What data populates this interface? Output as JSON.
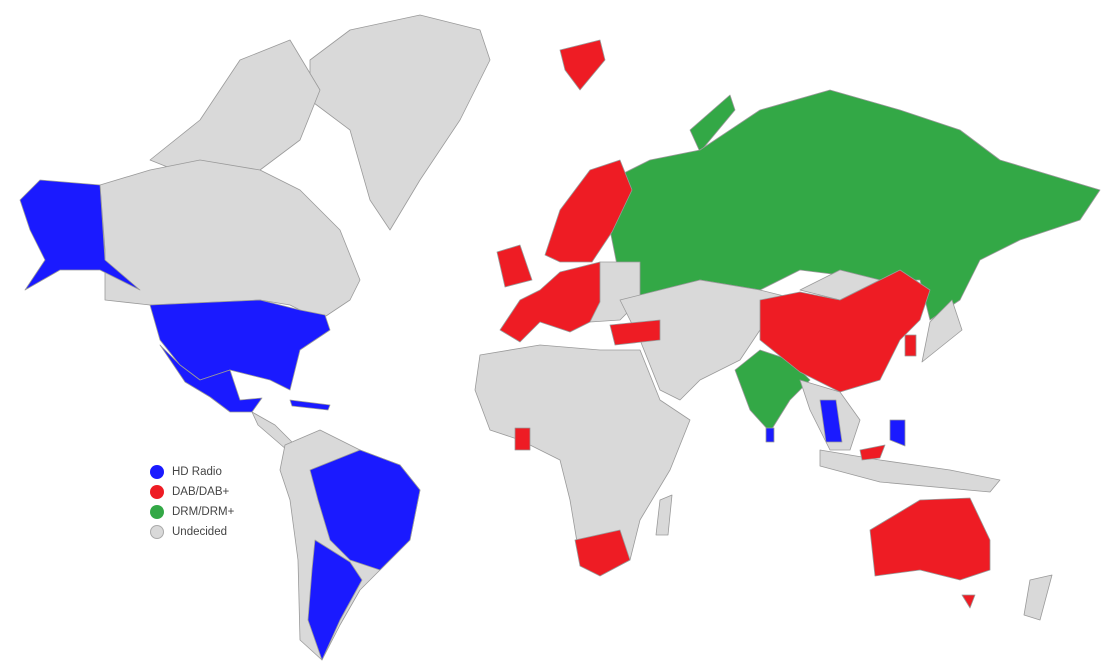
{
  "colors": {
    "hd_radio": "#1a1aff",
    "dab": "#ee1c24",
    "drm": "#33a846",
    "undecided": "#d9d9d9",
    "border": "#9a9a9a"
  },
  "legend": [
    {
      "label": "HD Radio",
      "color": "#1a1aff"
    },
    {
      "label": "DAB/DAB+",
      "color": "#ee1c24"
    },
    {
      "label": "DRM/DRM+",
      "color": "#33a846"
    },
    {
      "label": "Undecided",
      "color": "#d9d9d9"
    }
  ]
}
